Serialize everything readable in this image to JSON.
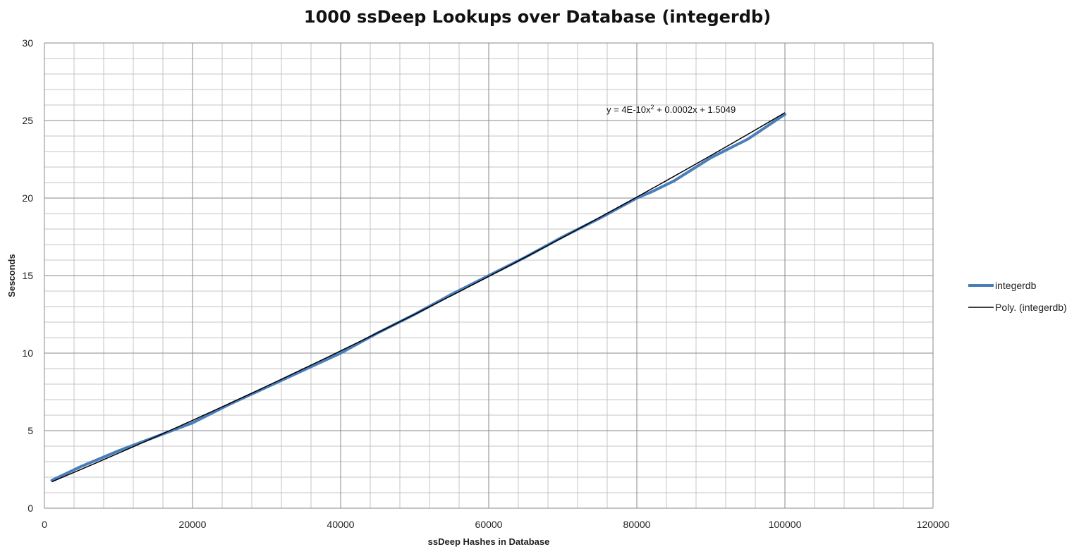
{
  "chart_data": {
    "type": "line",
    "title": "1000 ssDeep Lookups over Database  (integerdb)",
    "xlabel": "ssDeep Hashes in Database",
    "ylabel": "Sesconds",
    "xlim": [
      0,
      120000
    ],
    "ylim": [
      0,
      30
    ],
    "x_ticks": [
      "0",
      "20000",
      "40000",
      "60000",
      "80000",
      "100000",
      "120000"
    ],
    "y_ticks": [
      "0",
      "5",
      "10",
      "15",
      "20",
      "25",
      "30"
    ],
    "x_major_step": 20000,
    "x_minor_step": 4000,
    "y_major_step": 5,
    "y_minor_step": 1,
    "grid": true,
    "legend_position": "right",
    "series": [
      {
        "name": "integerdb",
        "color": "#4a7ebb",
        "x": [
          1000,
          5000,
          10000,
          15000,
          20000,
          25000,
          30000,
          35000,
          40000,
          45000,
          50000,
          55000,
          60000,
          65000,
          70000,
          75000,
          80000,
          82000,
          85000,
          90000,
          95000,
          100000
        ],
        "y": [
          1.8,
          2.7,
          3.7,
          4.6,
          5.5,
          6.7,
          7.8,
          8.9,
          10.0,
          11.3,
          12.5,
          13.8,
          15.0,
          16.2,
          17.5,
          18.7,
          20.0,
          20.4,
          21.1,
          22.6,
          23.8,
          25.4
        ]
      },
      {
        "name": "Poly. (integerdb)",
        "color": "#000000",
        "type": "trendline",
        "equation": "y = 4E-10x² + 0.0002x + 1.5049",
        "coefficients": [
          4e-10,
          0.0002,
          1.5049
        ],
        "x_range": [
          1000,
          100000
        ]
      }
    ]
  }
}
